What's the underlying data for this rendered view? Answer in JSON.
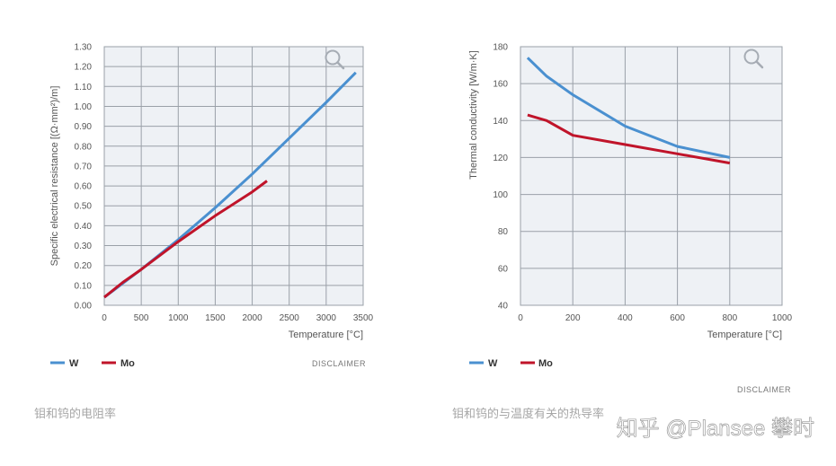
{
  "chart_data": [
    {
      "type": "line",
      "xlabel": "Temperature [°C]",
      "ylabel": "Specific electrical resistance [(Ω·mm²)/m]",
      "xlim": [
        0,
        3500
      ],
      "ylim": [
        0.0,
        1.3
      ],
      "xticks": [
        "0",
        "500",
        "1000",
        "1500",
        "2000",
        "2500",
        "3000",
        "3500"
      ],
      "yticks": [
        "0.00",
        "0.10",
        "0.20",
        "0.30",
        "0.40",
        "0.50",
        "0.60",
        "0.70",
        "0.80",
        "0.90",
        "1.00",
        "1.10",
        "1.20",
        "1.30"
      ],
      "grid": true,
      "legend_position": "bottom-left",
      "series": [
        {
          "name": "W",
          "color": "#4a90d0",
          "x": [
            0,
            250,
            500,
            1000,
            1500,
            2000,
            2500,
            3000,
            3400
          ],
          "y": [
            0.04,
            0.11,
            0.18,
            0.33,
            0.49,
            0.66,
            0.84,
            1.02,
            1.17
          ]
        },
        {
          "name": "Mo",
          "color": "#c0142a",
          "x": [
            0,
            250,
            500,
            1000,
            1500,
            2000,
            2200
          ],
          "y": [
            0.04,
            0.115,
            0.18,
            0.32,
            0.45,
            0.57,
            0.625
          ]
        }
      ],
      "legend": [
        {
          "label": "W",
          "color": "#4a90d0"
        },
        {
          "label": "Mo",
          "color": "#c0142a"
        }
      ],
      "disclaimer": "DISCLAIMER",
      "caption": "钼和钨的电阻率"
    },
    {
      "type": "line",
      "xlabel": "Temperature [°C]",
      "ylabel": "Thermal conductivity [W/m·K]",
      "xlim": [
        0,
        1000
      ],
      "ylim": [
        40,
        180
      ],
      "xticks": [
        "0",
        "200",
        "400",
        "600",
        "800",
        "1000"
      ],
      "yticks": [
        "40",
        "60",
        "80",
        "100",
        "120",
        "140",
        "160",
        "180"
      ],
      "grid": true,
      "legend_position": "bottom-left",
      "series": [
        {
          "name": "W",
          "color": "#4a90d0",
          "x": [
            27,
            100,
            200,
            400,
            600,
            800
          ],
          "y": [
            174,
            164,
            154,
            137,
            126,
            120
          ]
        },
        {
          "name": "Mo",
          "color": "#c0142a",
          "x": [
            27,
            100,
            200,
            400,
            600,
            800
          ],
          "y": [
            143,
            140,
            132,
            127,
            122,
            117
          ]
        }
      ],
      "legend": [
        {
          "label": "W",
          "color": "#4a90d0"
        },
        {
          "label": "Mo",
          "color": "#c0142a"
        }
      ],
      "disclaimer": "DISCLAIMER",
      "caption": "钼和钨的与温度有关的热导率"
    }
  ],
  "icons": [
    "zoom-icon",
    "zoom-icon"
  ],
  "watermark": "知乎 @Plansee 攀时"
}
